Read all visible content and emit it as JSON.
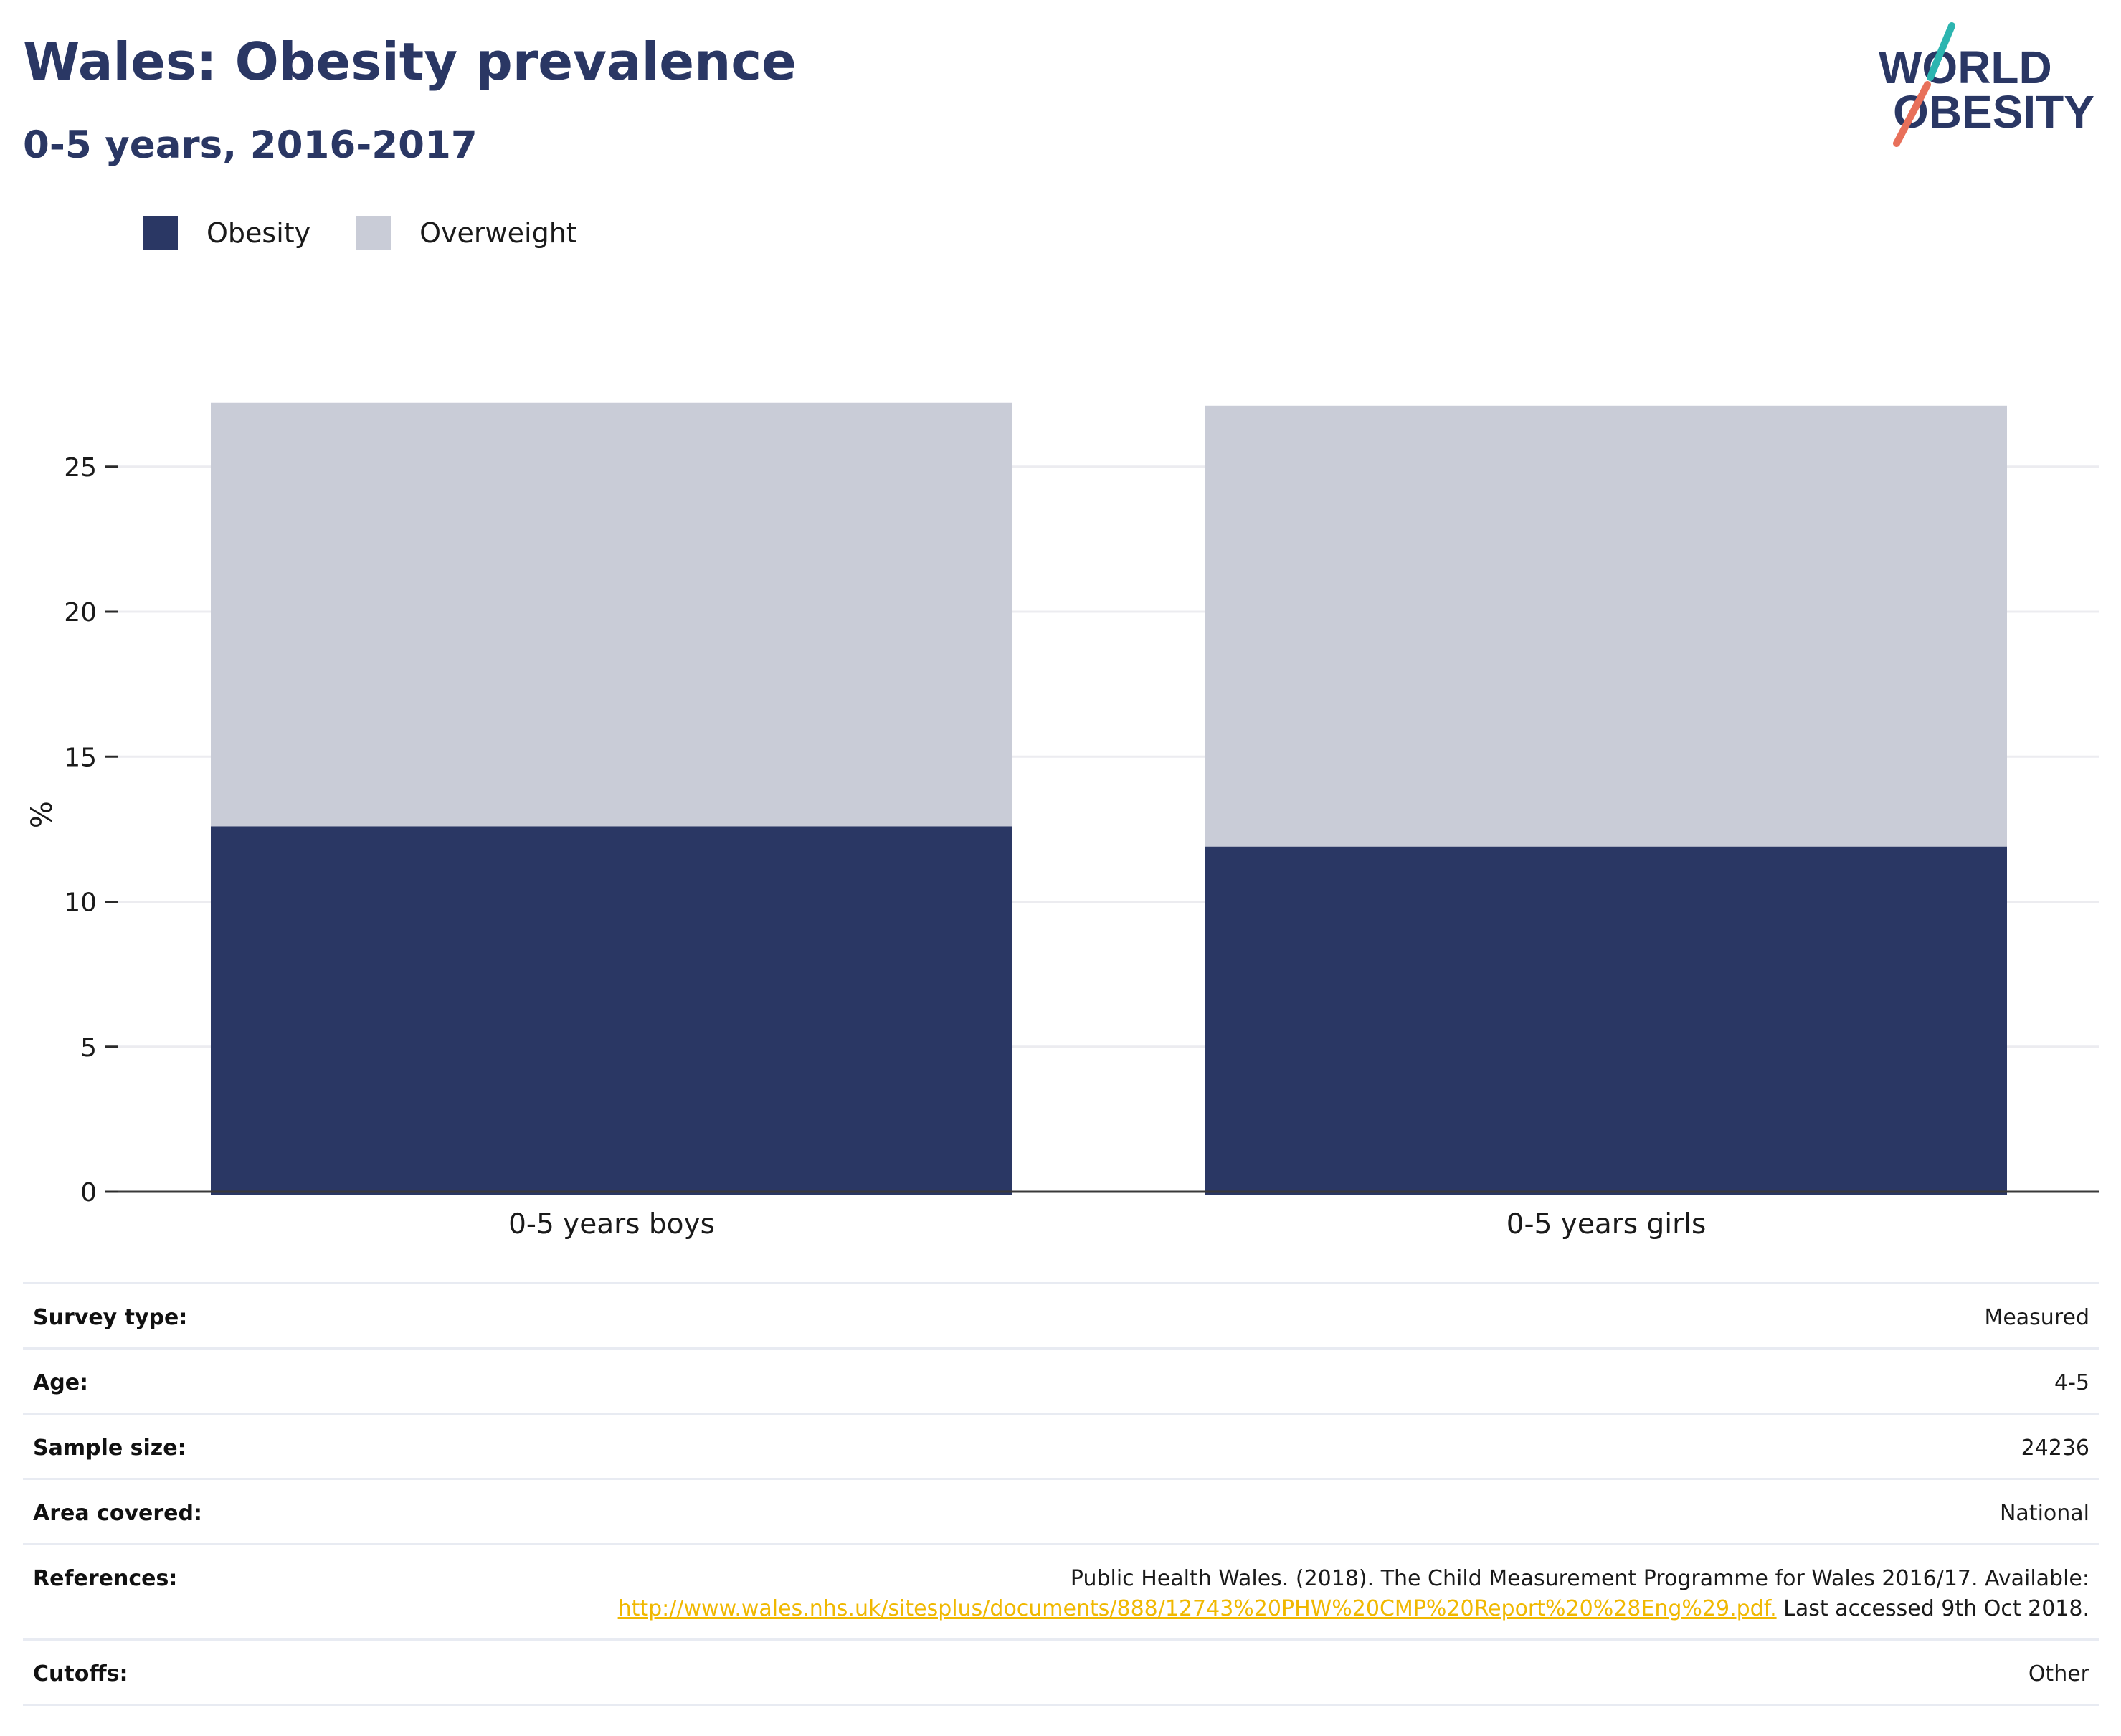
{
  "header": {
    "title": "Wales: Obesity prevalence",
    "subtitle": "0-5 years, 2016-2017"
  },
  "logo": {
    "line1": "WORLD",
    "line2": "OBESITY",
    "slash_top_color": "#2cb5b0",
    "slash_bottom_color": "#e8705a"
  },
  "colors": {
    "obesity": "#2a3764",
    "overweight": "#c9ccd7",
    "text": "#2a3764",
    "link": "#f0b800"
  },
  "legend": {
    "items": [
      {
        "label": "Obesity",
        "color": "#2a3764"
      },
      {
        "label": "Overweight",
        "color": "#c9ccd7"
      }
    ],
    "placement": "top-left"
  },
  "chart_data": {
    "type": "bar",
    "stacked": true,
    "categories": [
      "0-5 years boys",
      "0-5 years girls"
    ],
    "series": [
      {
        "name": "Obesity",
        "values": [
          12.6,
          11.9
        ]
      },
      {
        "name": "Overweight",
        "values": [
          14.6,
          15.2
        ]
      }
    ],
    "ylabel": "%",
    "yticks": [
      0,
      5,
      10,
      15,
      20,
      25
    ],
    "ylim": [
      0,
      27.2
    ],
    "grid": true
  },
  "meta": {
    "rows": [
      {
        "label": "Survey type:",
        "value": "Measured"
      },
      {
        "label": "Age:",
        "value": "4-5"
      },
      {
        "label": "Sample size:",
        "value": "24236"
      },
      {
        "label": "Area covered:",
        "value": "National"
      }
    ],
    "references": {
      "label": "References:",
      "text_before": "Public Health Wales. (2018). The Child Measurement Programme for Wales 2016/17. Available:",
      "link": "http://www.wales.nhs.uk/sitesplus/documents/888/12743%20PHW%20CMP%20Report%20%28Eng%29.pdf.",
      "text_after": "Last accessed 9th Oct 2018."
    },
    "cutoffs": {
      "label": "Cutoffs:",
      "value": "Other"
    }
  }
}
